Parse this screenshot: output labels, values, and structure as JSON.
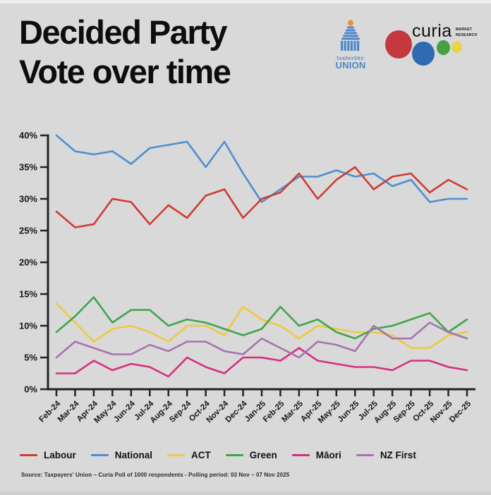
{
  "header": {
    "title_line1": "Decided Party",
    "title_line2": "Vote over time",
    "logos": {
      "taxpayers_union": {
        "line1": "TAXPAYERS'",
        "line2": "UNION",
        "color": "#4d87c9",
        "dome_color": "#e8923d"
      },
      "curia": {
        "name": "curia",
        "sub_line1": "MARKET",
        "sub_line2": "RESEARCH",
        "circle_colors": {
          "red": "#c5383e",
          "blue": "#2e6bb0",
          "green": "#46a145",
          "yellow": "#e7d44c"
        }
      }
    }
  },
  "chart_data": {
    "type": "line",
    "title": "Decided Party Vote over time",
    "categories": [
      "Feb-24",
      "Mar-24",
      "Apr-24",
      "May-24",
      "Jun-24",
      "Jul-24",
      "Aug-24",
      "Sep-24",
      "Oct-24",
      "Nov-24",
      "Dec-24",
      "Jan-25",
      "Feb-25",
      "Mar-25",
      "Apr-25",
      "May-25",
      "Jun-25",
      "Jul-25",
      "Aug-25",
      "Sep-25",
      "Oct-25",
      "Nov-25",
      "Dec-25"
    ],
    "series": [
      {
        "name": "Labour",
        "color": "#d03b33",
        "values": [
          28,
          25.5,
          26,
          30,
          29.5,
          26,
          29,
          27,
          30.5,
          31.5,
          27,
          30,
          31,
          34,
          30,
          33,
          35,
          31.5,
          33.5,
          34,
          31,
          33,
          31.5
        ]
      },
      {
        "name": "National",
        "color": "#4d8fd1",
        "values": [
          40,
          37.5,
          37,
          37.5,
          35.5,
          38,
          38.5,
          39,
          35,
          39,
          34,
          29.5,
          31.5,
          33.5,
          33.5,
          34.5,
          33.5,
          34,
          32,
          33,
          29.5,
          30,
          30
        ]
      },
      {
        "name": "ACT",
        "color": "#efc93f",
        "values": [
          13.5,
          10.5,
          7.5,
          9.5,
          10,
          9,
          7.5,
          10,
          10,
          8.5,
          13,
          11,
          10,
          8,
          10,
          9.5,
          9,
          9,
          8.5,
          6.5,
          6.5,
          8.5,
          9
        ]
      },
      {
        "name": "Green",
        "color": "#3fa54b",
        "values": [
          9,
          11.5,
          14.5,
          10.5,
          12.5,
          12.5,
          10,
          11,
          10.5,
          9.5,
          8.5,
          9.5,
          13,
          10,
          11,
          9,
          8,
          9.5,
          10,
          11,
          12,
          9,
          11
        ]
      },
      {
        "name": "Māori",
        "color": "#d82e80",
        "values": [
          2.5,
          2.5,
          4.5,
          3,
          4,
          3.5,
          2,
          5,
          3.5,
          2.5,
          5,
          5,
          4.5,
          6.5,
          4.5,
          4,
          3.5,
          3.5,
          3,
          4.5,
          4.5,
          3.5,
          3
        ]
      },
      {
        "name": "NZ First",
        "color": "#a673ad",
        "values": [
          5,
          7.5,
          6.5,
          5.5,
          5.5,
          7,
          6,
          7.5,
          7.5,
          6,
          5.5,
          8,
          6.5,
          5,
          7.5,
          7,
          6,
          10,
          8,
          8,
          10.5,
          9,
          8
        ]
      }
    ],
    "ylim": [
      0,
      40
    ],
    "ytick_step": 5,
    "ytick_suffix": "%",
    "grid": false,
    "legend_position": "bottom",
    "axis_color": "#222222"
  },
  "footer": {
    "source": "Source: Taxpayers' Union – Curia Poll of 1000 respondents -  Polling period: 03 Nov – 07 Nov 2025"
  }
}
